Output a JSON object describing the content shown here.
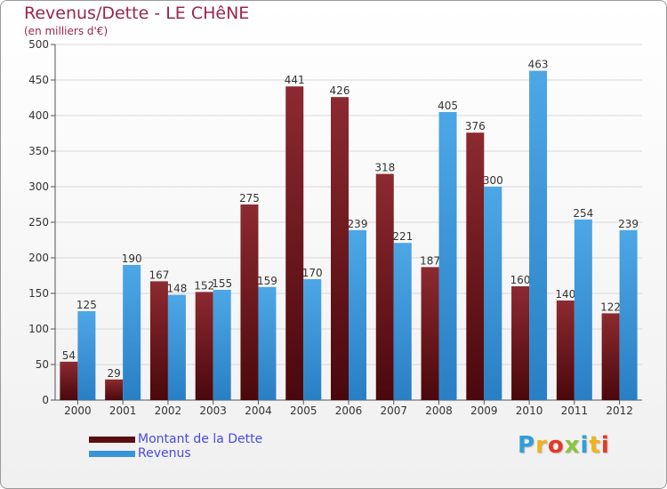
{
  "chart_data": {
    "type": "bar",
    "title": "Revenus/Dette - LE CHêNE",
    "subtitle": "(en milliers d'€)",
    "categories": [
      "2000",
      "2001",
      "2002",
      "2003",
      "2004",
      "2005",
      "2006",
      "2007",
      "2008",
      "2009",
      "2010",
      "2011",
      "2012"
    ],
    "series": [
      {
        "name": "Montant de la Dette",
        "color": "#7a1a1e",
        "values": [
          54,
          29,
          167,
          152,
          275,
          441,
          426,
          318,
          187,
          376,
          160,
          140,
          122
        ]
      },
      {
        "name": "Revenus",
        "color": "#3a94d8",
        "values": [
          125,
          190,
          148,
          155,
          159,
          170,
          239,
          221,
          405,
          300,
          463,
          254,
          239
        ]
      }
    ],
    "ylim": [
      0,
      500
    ],
    "yticks": [
      0,
      50,
      100,
      150,
      200,
      250,
      300,
      350,
      400,
      450,
      500
    ],
    "grid": true,
    "legend_position": "bottom-left"
  },
  "brand": {
    "letters": [
      {
        "ch": "P",
        "color": "#2f9fd9"
      },
      {
        "ch": "r",
        "color": "#f2b21a"
      },
      {
        "ch": "o",
        "color": "#e53a25"
      },
      {
        "ch": "x",
        "color": "#8bc53f"
      },
      {
        "ch": "i",
        "color": "#2f9fd9"
      },
      {
        "ch": "t",
        "color": "#f2b21a"
      },
      {
        "ch": "i",
        "color": "#e53a25"
      }
    ]
  }
}
